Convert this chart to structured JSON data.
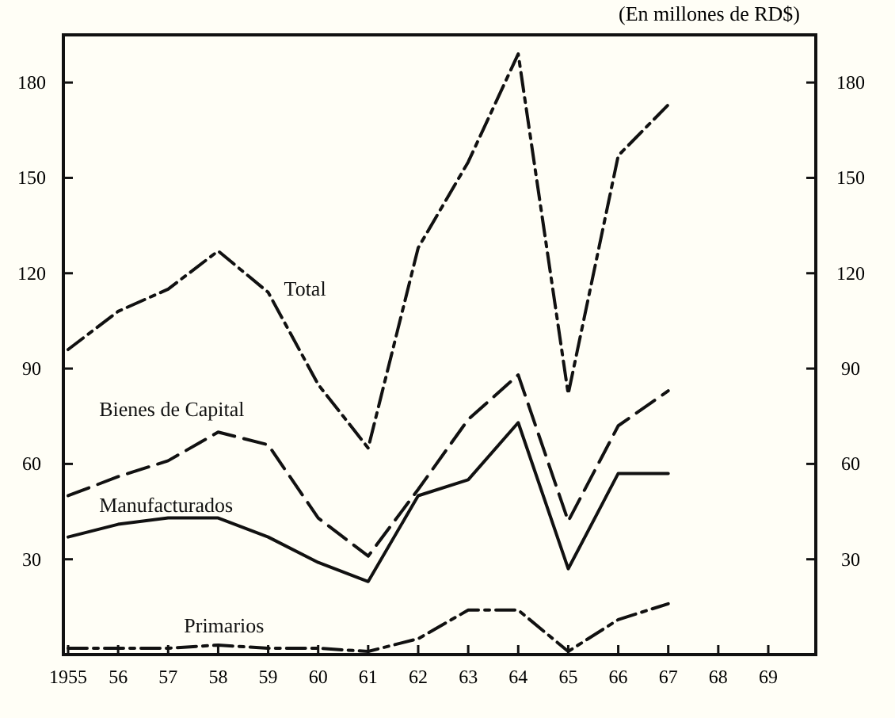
{
  "chart_data": {
    "type": "line",
    "subtitle": "(En millones de RD$)",
    "categories": [
      "1955",
      "56",
      "57",
      "58",
      "59",
      "60",
      "61",
      "62",
      "63",
      "64",
      "65",
      "66",
      "67",
      "68",
      "69"
    ],
    "series": [
      {
        "name": "Total",
        "color": "#111111",
        "line_style": "dashdot",
        "values": [
          96,
          108,
          115,
          127,
          114,
          85,
          65,
          128,
          155,
          189,
          82,
          157,
          173,
          null,
          null
        ]
      },
      {
        "name": "Bienes de Capital",
        "color": "#111111",
        "line_style": "dashed",
        "values": [
          50,
          56,
          61,
          70,
          66,
          43,
          31,
          52,
          74,
          88,
          42,
          72,
          83,
          null,
          null
        ]
      },
      {
        "name": "Manufacturados",
        "color": "#111111",
        "line_style": "solid",
        "values": [
          37,
          41,
          43,
          43,
          37,
          29,
          23,
          50,
          55,
          73,
          27,
          57,
          57,
          null,
          null
        ]
      },
      {
        "name": "Primarios",
        "color": "#111111",
        "line_style": "dashdot",
        "values": [
          2,
          2,
          2,
          3,
          2,
          2,
          1,
          5,
          14,
          14,
          1,
          11,
          16,
          null,
          null
        ]
      }
    ],
    "ylim": [
      0,
      195
    ],
    "yticks": [
      30,
      60,
      90,
      120,
      150,
      180
    ],
    "y2lim": [
      0,
      195
    ],
    "y2ticks": [
      30,
      60,
      90,
      120,
      150,
      180
    ],
    "grid": false,
    "legend": false,
    "marker": "none"
  }
}
